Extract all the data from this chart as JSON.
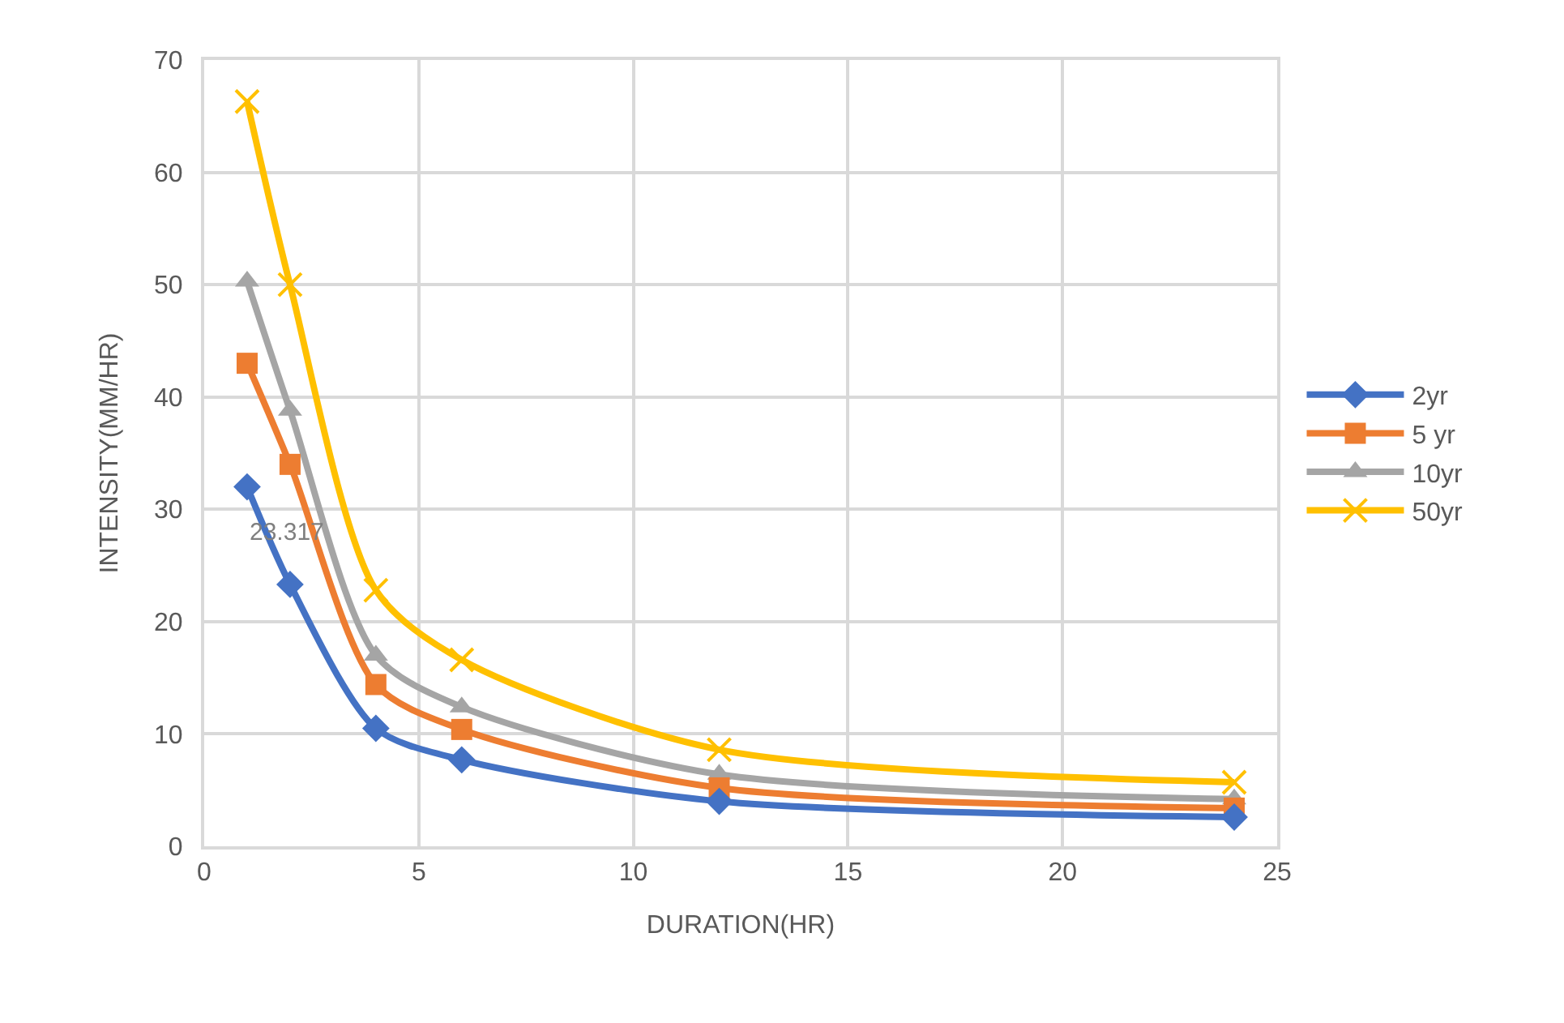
{
  "chart_data": {
    "type": "line",
    "xlabel": "DURATION(HR)",
    "ylabel": "INTENSITY(MM/HR)",
    "x": [
      1,
      2,
      4,
      6,
      12,
      24
    ],
    "xlim": [
      0,
      25
    ],
    "xticks": [
      0,
      5,
      10,
      15,
      20,
      25
    ],
    "ylim": [
      0,
      70
    ],
    "yticks": [
      0,
      10,
      20,
      30,
      40,
      50,
      60,
      70
    ],
    "grid": true,
    "legend": "right",
    "series": [
      {
        "name": "2yr",
        "color": "#4472c4",
        "marker": "diamond",
        "values": [
          32,
          23.317,
          10.5,
          7.7,
          4.0,
          2.6
        ],
        "value_labels": [
          null,
          "23.317",
          null,
          null,
          null,
          null
        ]
      },
      {
        "name": "5 yr",
        "color": "#ed7d31",
        "marker": "square",
        "values": [
          43,
          34,
          14.4,
          10.4,
          5.2,
          3.4
        ]
      },
      {
        "name": "10yr",
        "color": "#a5a5a5",
        "marker": "triangle",
        "values": [
          50.3,
          38.8,
          17,
          12.4,
          6.4,
          4.2
        ]
      },
      {
        "name": "50yr",
        "color": "#ffc000",
        "marker": "cross",
        "values": [
          66.3,
          50,
          22.8,
          16.6,
          8.6,
          5.7
        ]
      }
    ]
  }
}
